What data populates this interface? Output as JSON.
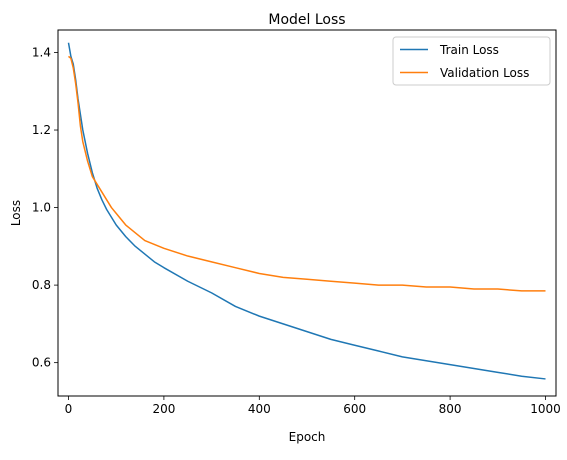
{
  "chart_data": {
    "type": "line",
    "title": "Model Loss",
    "xlabel": "Epoch",
    "ylabel": "Loss",
    "xlim": [
      -22,
      1022
    ],
    "ylim": [
      0.514,
      1.458
    ],
    "xticks": [
      0,
      200,
      400,
      600,
      800,
      1000
    ],
    "yticks": [
      0.6,
      0.8,
      1.0,
      1.2,
      1.4
    ],
    "xtick_labels": [
      "0",
      "200",
      "400",
      "600",
      "800",
      "1000"
    ],
    "ytick_labels": [
      "0.6",
      "0.8",
      "1.0",
      "1.2",
      "1.4"
    ],
    "grid": false,
    "legend_position": "top-right",
    "series": [
      {
        "name": "Train Loss",
        "color": "#1f77b4",
        "x": [
          0,
          5,
          10,
          15,
          20,
          25,
          30,
          40,
          50,
          60,
          70,
          80,
          90,
          100,
          120,
          140,
          160,
          180,
          200,
          250,
          300,
          350,
          400,
          450,
          500,
          550,
          600,
          650,
          700,
          750,
          800,
          850,
          900,
          950,
          1000
        ],
        "y": [
          1.425,
          1.39,
          1.37,
          1.33,
          1.28,
          1.24,
          1.2,
          1.14,
          1.09,
          1.05,
          1.02,
          0.995,
          0.975,
          0.955,
          0.925,
          0.9,
          0.88,
          0.86,
          0.845,
          0.81,
          0.78,
          0.745,
          0.72,
          0.7,
          0.68,
          0.66,
          0.645,
          0.63,
          0.615,
          0.605,
          0.595,
          0.585,
          0.575,
          0.565,
          0.558
        ]
      },
      {
        "name": "Validation Loss",
        "color": "#ff7f0e",
        "x": [
          0,
          5,
          10,
          15,
          20,
          25,
          30,
          40,
          50,
          60,
          70,
          80,
          90,
          100,
          120,
          140,
          160,
          180,
          200,
          250,
          300,
          350,
          400,
          450,
          500,
          550,
          600,
          650,
          700,
          750,
          800,
          850,
          900,
          950,
          1000
        ],
        "y": [
          1.39,
          1.385,
          1.36,
          1.32,
          1.27,
          1.21,
          1.17,
          1.12,
          1.08,
          1.06,
          1.04,
          1.02,
          1.0,
          0.985,
          0.955,
          0.935,
          0.915,
          0.905,
          0.895,
          0.875,
          0.86,
          0.845,
          0.83,
          0.82,
          0.815,
          0.81,
          0.805,
          0.8,
          0.8,
          0.795,
          0.795,
          0.79,
          0.79,
          0.785,
          0.785
        ]
      }
    ]
  }
}
